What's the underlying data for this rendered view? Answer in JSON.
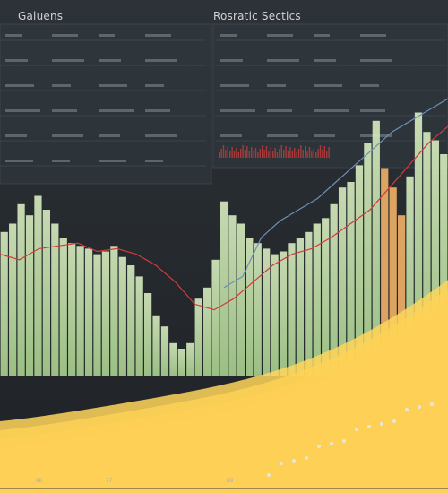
{
  "titles": {
    "left": "Galuens",
    "right": "Rosratic Sectics"
  },
  "tick_labels": [
    "88",
    "77",
    "88"
  ],
  "colors": {
    "background": "#2a2f34",
    "panel": "#323a40",
    "panel_border": "#4a535a",
    "bar_green": "#a8d08d",
    "bar_light": "#d8ecc0",
    "bar_orange": "#f1b067",
    "line_red": "#d13b3b",
    "line_blue": "#6e8fb8",
    "band_colors": [
      "#ffd65a",
      "#f5b73d",
      "#ef8a2e",
      "#e4542b",
      "#c9332c",
      "#b7282e",
      "#d94c55"
    ]
  },
  "chart_data": {
    "type": "bar",
    "title": "",
    "xlabel": "",
    "ylabel": "",
    "bars": [
      52,
      55,
      62,
      58,
      65,
      60,
      55,
      50,
      48,
      47,
      46,
      44,
      45,
      47,
      43,
      40,
      36,
      30,
      22,
      18,
      12,
      10,
      12,
      28,
      32,
      42,
      63,
      58,
      55,
      50,
      48,
      46,
      44,
      45,
      48,
      50,
      52,
      55,
      57,
      62,
      68,
      70,
      76,
      84,
      92,
      75,
      68,
      58,
      72,
      95,
      88,
      85,
      80
    ],
    "line_red": [
      44,
      42,
      46,
      47,
      48,
      45,
      46,
      44,
      40,
      34,
      26,
      24,
      28,
      34,
      40,
      44,
      46,
      50,
      55,
      60,
      68,
      76,
      84,
      90
    ],
    "line_blue": [
      32,
      36,
      50,
      56,
      60,
      64,
      70,
      76,
      82,
      88,
      92,
      96,
      100
    ],
    "bands": 7
  }
}
